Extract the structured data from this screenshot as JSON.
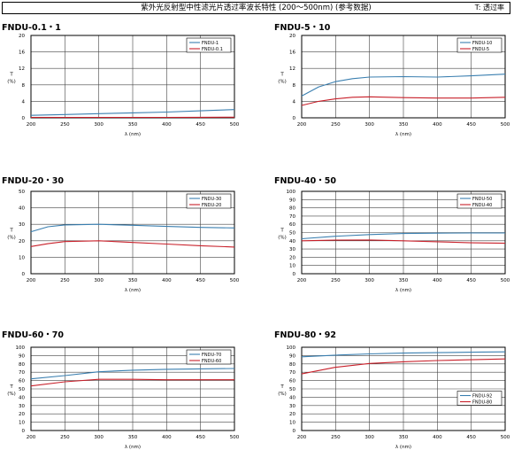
{
  "header": {
    "title": "紫外光反射型中性滤光片透过率波长特性 (200～500nm) (参考数据)",
    "note": "T: 透过率"
  },
  "colors": {
    "blue": "#3a7fb0",
    "red": "#c8202a",
    "grid": "#444444"
  },
  "chart_data": [
    {
      "type": "line",
      "title": "FNDU-0.1・1",
      "xlabel": "λ (nm)",
      "ylabel": "T (%)",
      "xlim": [
        200,
        500
      ],
      "ylim": [
        0,
        20
      ],
      "xticks": [
        200,
        250,
        300,
        350,
        400,
        450,
        500
      ],
      "yticks": [
        0,
        4,
        8,
        12,
        16,
        20
      ],
      "grid": true,
      "legend_position": "top-right",
      "x": [
        200,
        250,
        300,
        350,
        400,
        450,
        500
      ],
      "series": [
        {
          "name": "FNDU-1",
          "color": "blue",
          "values": [
            0.6,
            0.8,
            1.0,
            1.2,
            1.4,
            1.7,
            2.0
          ]
        },
        {
          "name": "FNDU-0.1",
          "color": "red",
          "values": [
            0.1,
            0.1,
            0.1,
            0.1,
            0.1,
            0.12,
            0.15
          ]
        }
      ]
    },
    {
      "type": "line",
      "title": "FNDU-5・10",
      "xlabel": "λ (nm)",
      "ylabel": "T (%)",
      "xlim": [
        200,
        500
      ],
      "ylim": [
        0,
        20
      ],
      "xticks": [
        200,
        250,
        300,
        350,
        400,
        450,
        500
      ],
      "yticks": [
        0,
        4,
        8,
        12,
        16,
        20
      ],
      "grid": true,
      "legend_position": "top-right",
      "x": [
        200,
        225,
        250,
        275,
        300,
        350,
        400,
        450,
        500
      ],
      "series": [
        {
          "name": "FNDU-10",
          "color": "blue",
          "values": [
            5.3,
            7.5,
            8.8,
            9.5,
            9.9,
            10.0,
            9.9,
            10.2,
            10.6
          ]
        },
        {
          "name": "FNDU-5",
          "color": "red",
          "values": [
            3.0,
            4.0,
            4.6,
            5.0,
            5.1,
            4.9,
            4.8,
            4.8,
            5.0
          ]
        }
      ]
    },
    {
      "type": "line",
      "title": "FNDU-20・30",
      "xlabel": "λ (nm)",
      "ylabel": "T (%)",
      "xlim": [
        200,
        500
      ],
      "ylim": [
        0,
        50
      ],
      "xticks": [
        200,
        250,
        300,
        350,
        400,
        450,
        500
      ],
      "yticks": [
        0,
        10,
        20,
        30,
        40,
        50
      ],
      "grid": true,
      "legend_position": "top-right",
      "x": [
        200,
        225,
        250,
        300,
        350,
        400,
        450,
        500
      ],
      "series": [
        {
          "name": "FNDU-30",
          "color": "blue",
          "values": [
            25.5,
            28.5,
            29.6,
            30.0,
            29.4,
            28.7,
            28.1,
            27.8
          ]
        },
        {
          "name": "FNDU-20",
          "color": "red",
          "values": [
            16.5,
            18.2,
            19.5,
            20.0,
            19.0,
            18.0,
            17.0,
            16.2
          ]
        }
      ]
    },
    {
      "type": "line",
      "title": "FNDU-40・50",
      "xlabel": "λ (nm)",
      "ylabel": "T (%)",
      "xlim": [
        200,
        500
      ],
      "ylim": [
        0,
        100
      ],
      "xticks": [
        200,
        250,
        300,
        350,
        400,
        450,
        500
      ],
      "yticks": [
        0,
        10,
        20,
        30,
        40,
        50,
        60,
        70,
        80,
        90,
        100
      ],
      "grid": true,
      "legend_position": "top-right",
      "x": [
        200,
        250,
        300,
        350,
        400,
        450,
        500
      ],
      "series": [
        {
          "name": "FNDU-50",
          "color": "blue",
          "values": [
            42.5,
            45.5,
            47.5,
            48.8,
            49.3,
            49.5,
            49.5
          ]
        },
        {
          "name": "FNDU-40",
          "color": "red",
          "values": [
            40.0,
            40.8,
            41.0,
            40.0,
            38.8,
            37.5,
            37.0
          ]
        }
      ]
    },
    {
      "type": "line",
      "title": "FNDU-60・70",
      "xlabel": "λ (nm)",
      "ylabel": "T (%)",
      "xlim": [
        200,
        500
      ],
      "ylim": [
        0,
        100
      ],
      "xticks": [
        200,
        250,
        300,
        350,
        400,
        450,
        500
      ],
      "yticks": [
        0,
        10,
        20,
        30,
        40,
        50,
        60,
        70,
        80,
        90,
        100
      ],
      "grid": true,
      "legend_position": "top-right",
      "x": [
        200,
        250,
        300,
        350,
        400,
        450,
        500
      ],
      "series": [
        {
          "name": "FNDU-70",
          "color": "blue",
          "values": [
            62.0,
            66.0,
            70.5,
            72.5,
            73.5,
            74.0,
            74.5
          ]
        },
        {
          "name": "FNDU-60",
          "color": "red",
          "values": [
            53.5,
            58.5,
            61.5,
            61.5,
            61.0,
            61.0,
            61.0
          ]
        }
      ]
    },
    {
      "type": "line",
      "title": "FNDU-80・92",
      "xlabel": "λ (nm)",
      "ylabel": "T (%)",
      "xlim": [
        200,
        500
      ],
      "ylim": [
        0,
        100
      ],
      "xticks": [
        200,
        250,
        300,
        350,
        400,
        450,
        500
      ],
      "yticks": [
        0,
        10,
        20,
        30,
        40,
        50,
        60,
        70,
        80,
        90,
        100
      ],
      "grid": true,
      "legend_position": "bottom-right",
      "x": [
        200,
        250,
        300,
        350,
        400,
        450,
        500
      ],
      "series": [
        {
          "name": "FNDU-92",
          "color": "blue",
          "values": [
            88.5,
            90.5,
            92.0,
            93.0,
            93.5,
            94.0,
            94.5
          ]
        },
        {
          "name": "FNDU-80",
          "color": "red",
          "values": [
            68.0,
            76.0,
            80.5,
            82.5,
            84.0,
            85.0,
            86.0
          ]
        }
      ]
    }
  ]
}
